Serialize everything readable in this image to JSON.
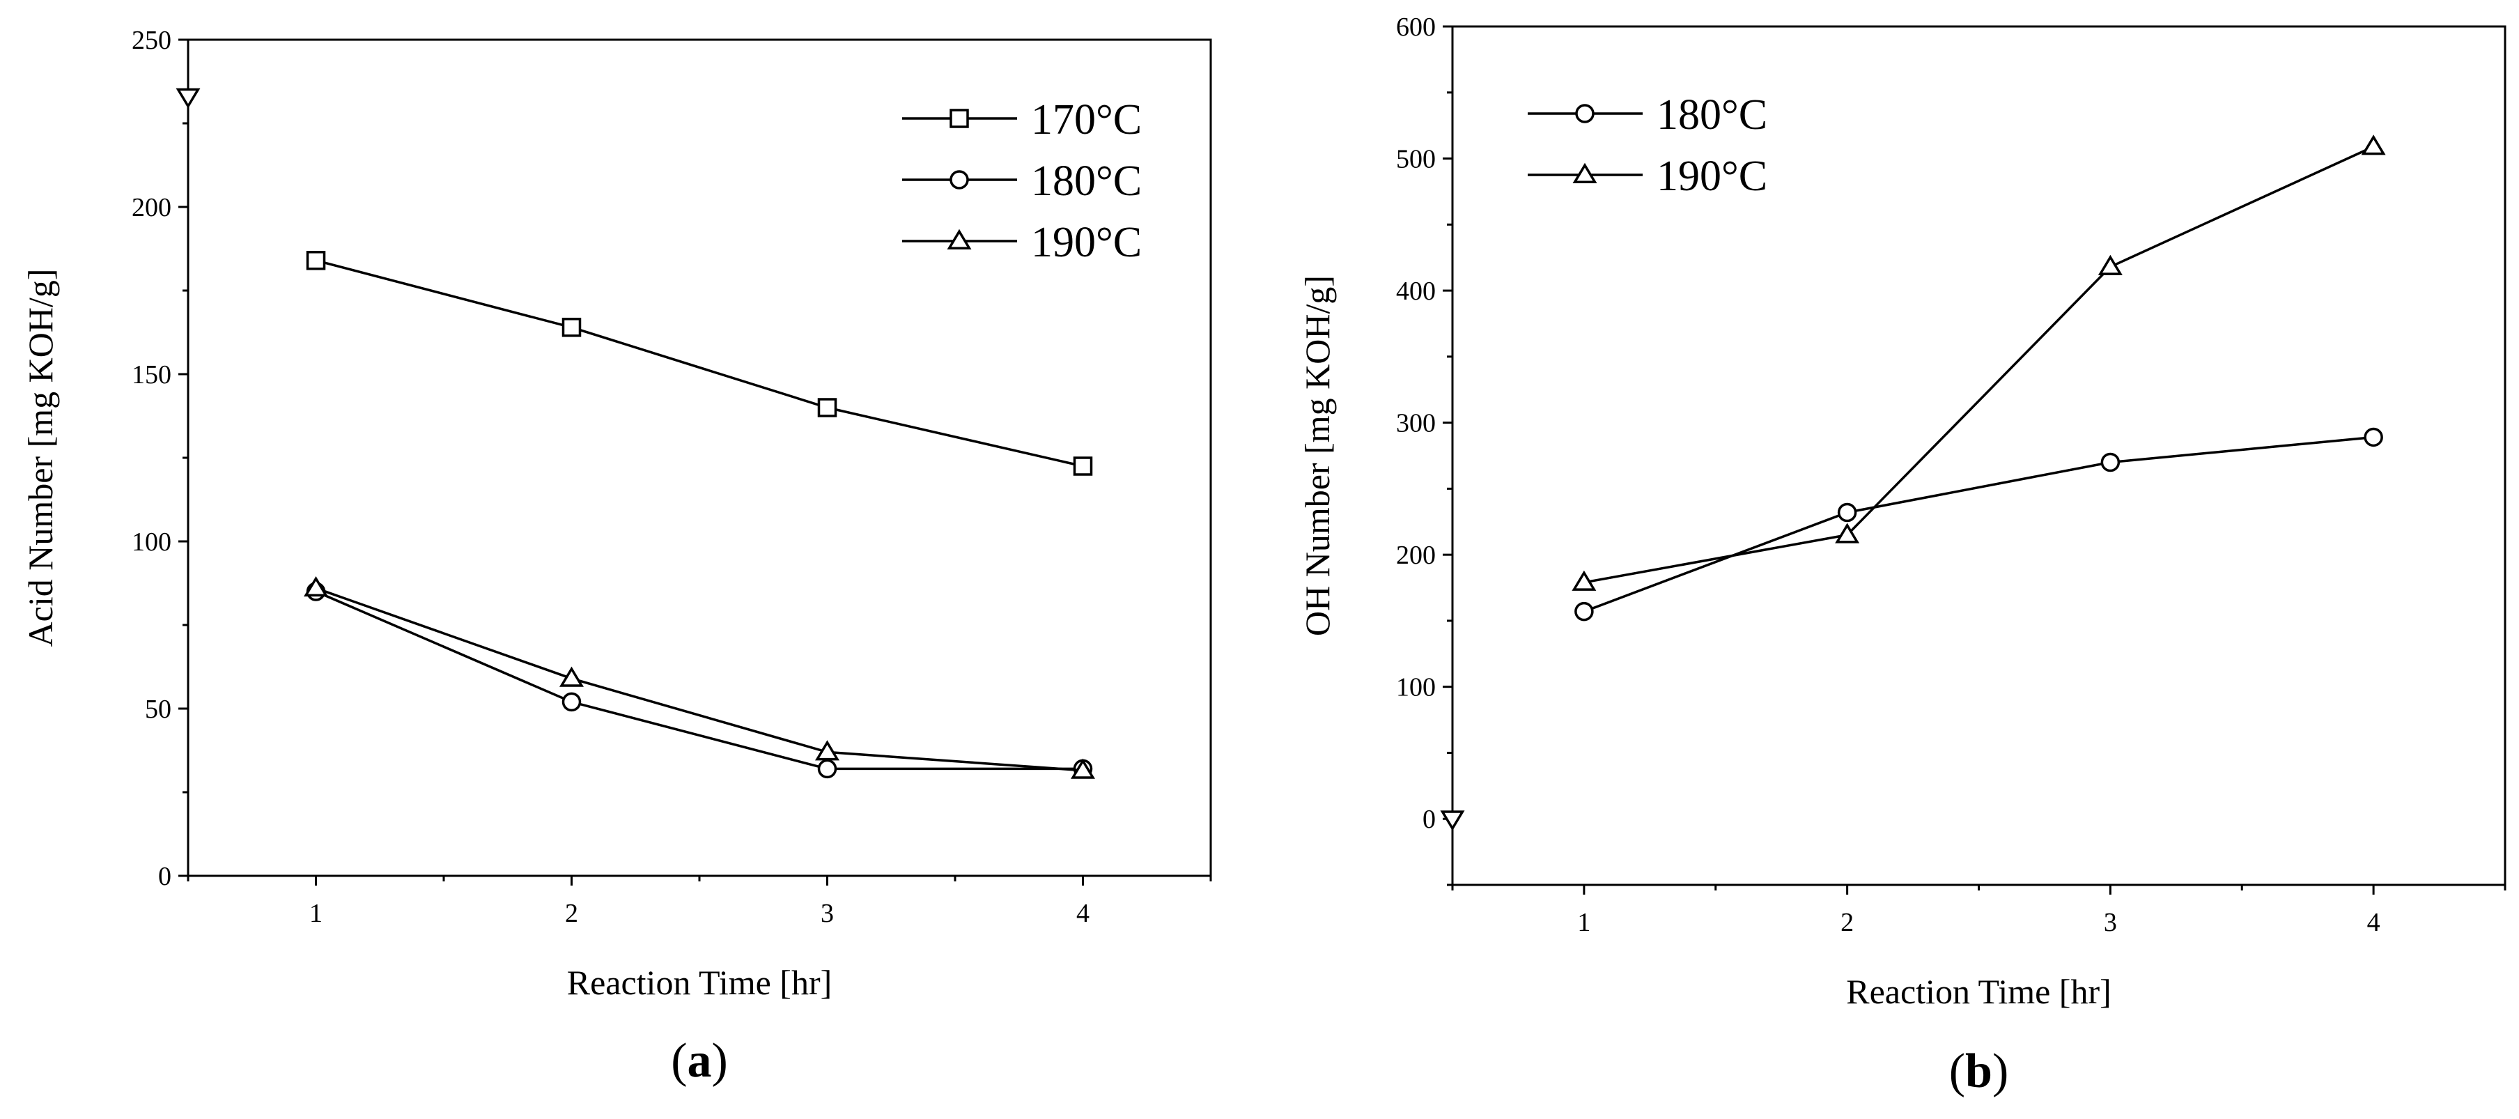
{
  "chart_data": [
    {
      "type": "line",
      "panel_label": "a",
      "xlabel": "Reaction Time [hr]",
      "ylabel": "Acid Number [mg KOH/g]",
      "xlim": [
        0.5,
        4.5
      ],
      "ylim": [
        0,
        250
      ],
      "xticks": [
        1,
        2,
        3,
        4
      ],
      "yticks": [
        0,
        50,
        100,
        150,
        200,
        250
      ],
      "legend_position": "top-right",
      "series": [
        {
          "name": "170°C",
          "marker": "square",
          "x": [
            1,
            2,
            3,
            4
          ],
          "y": [
            184,
            164,
            140,
            122.5
          ]
        },
        {
          "name": "180°C",
          "marker": "circle",
          "x": [
            1,
            2,
            3,
            4
          ],
          "y": [
            85,
            52,
            32,
            32
          ]
        },
        {
          "name": "190°C",
          "marker": "triangle-up",
          "x": [
            1,
            2,
            3,
            4
          ],
          "y": [
            86,
            59,
            37,
            31.5
          ]
        }
      ],
      "extra_points": [
        {
          "marker": "triangle-down",
          "x": 0.5,
          "y": 233
        }
      ]
    },
    {
      "type": "line",
      "panel_label": "b",
      "xlabel": "Reaction Time [hr]",
      "ylabel": "OH Number [mg KOH/g]",
      "xlim": [
        0.5,
        4.5
      ],
      "ylim": [
        -50,
        600
      ],
      "xticks": [
        1,
        2,
        3,
        4
      ],
      "yticks": [
        0,
        100,
        200,
        300,
        400,
        500,
        600
      ],
      "legend_position": "top-left",
      "series": [
        {
          "name": "180°C",
          "marker": "circle",
          "x": [
            1,
            2,
            3,
            4
          ],
          "y": [
            157,
            232,
            270,
            289
          ]
        },
        {
          "name": "190°C",
          "marker": "triangle-up",
          "x": [
            1,
            2,
            3,
            4
          ],
          "y": [
            179,
            215,
            418,
            509
          ]
        }
      ],
      "extra_points": [
        {
          "marker": "triangle-down",
          "x": 0.5,
          "y": 0
        }
      ]
    }
  ]
}
